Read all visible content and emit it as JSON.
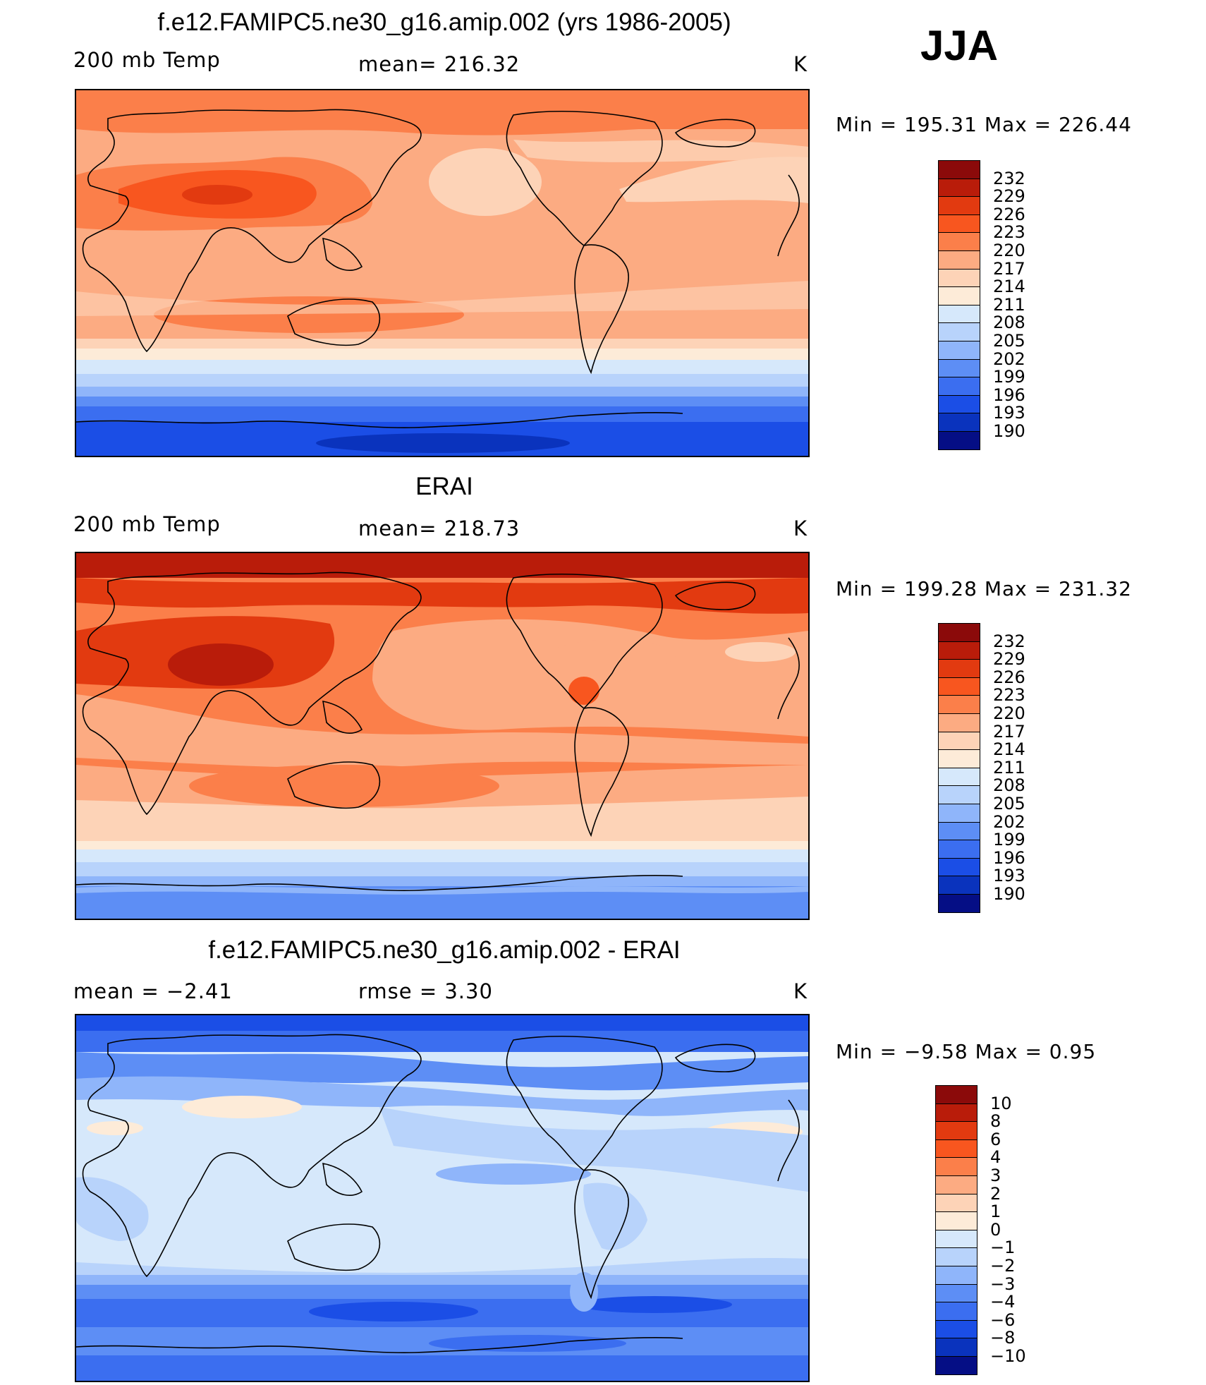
{
  "season": "JJA",
  "panels": [
    {
      "title": "f.e12.FAMIPC5.ne30_g16.amip.002 (yrs 1986-2005)",
      "variable": "200 mb Temp",
      "stat": "mean= 216.32",
      "units": "K",
      "minmax": "Min  =  195.31  Max  =  226.44"
    },
    {
      "title": "ERAI",
      "variable": "200 mb Temp",
      "stat": "mean= 218.73",
      "units": "K",
      "minmax": "Min  =  199.28  Max  =  231.32"
    },
    {
      "title": "f.e12.FAMIPC5.ne30_g16.amip.002 - ERAI",
      "variable": "mean =    −2.41",
      "stat": "rmse =     3.30",
      "units": "K",
      "minmax": "Min  =    −9.58  Max  =      0.95"
    }
  ],
  "colorbars": {
    "temperature": {
      "labels": [
        "232",
        "229",
        "226",
        "223",
        "220",
        "217",
        "214",
        "211",
        "208",
        "205",
        "202",
        "199",
        "196",
        "193",
        "190"
      ],
      "colors": [
        "#8b0a0a",
        "#b91c0a",
        "#e23a10",
        "#f8561f",
        "#fb7f4a",
        "#fcab82",
        "#fdd3b7",
        "#fdebd8",
        "#d6e8fb",
        "#b8d3fb",
        "#8fb5fa",
        "#5d8ef5",
        "#3b6ef0",
        "#1b4ee6",
        "#0a33bd",
        "#050e85"
      ]
    },
    "difference": {
      "labels": [
        "10",
        "8",
        "6",
        "4",
        "3",
        "2",
        "1",
        "0",
        "−1",
        "−2",
        "−3",
        "−4",
        "−6",
        "−8",
        "−10"
      ],
      "colors": [
        "#8b0a0a",
        "#b91c0a",
        "#e23a10",
        "#f8561f",
        "#fb7f4a",
        "#fcab82",
        "#fdd3b7",
        "#fdebd8",
        "#d6e8fb",
        "#b8d3fb",
        "#8fb5fa",
        "#5d8ef5",
        "#3b6ef0",
        "#1b4ee6",
        "#0a33bd",
        "#050e85"
      ]
    }
  }
}
